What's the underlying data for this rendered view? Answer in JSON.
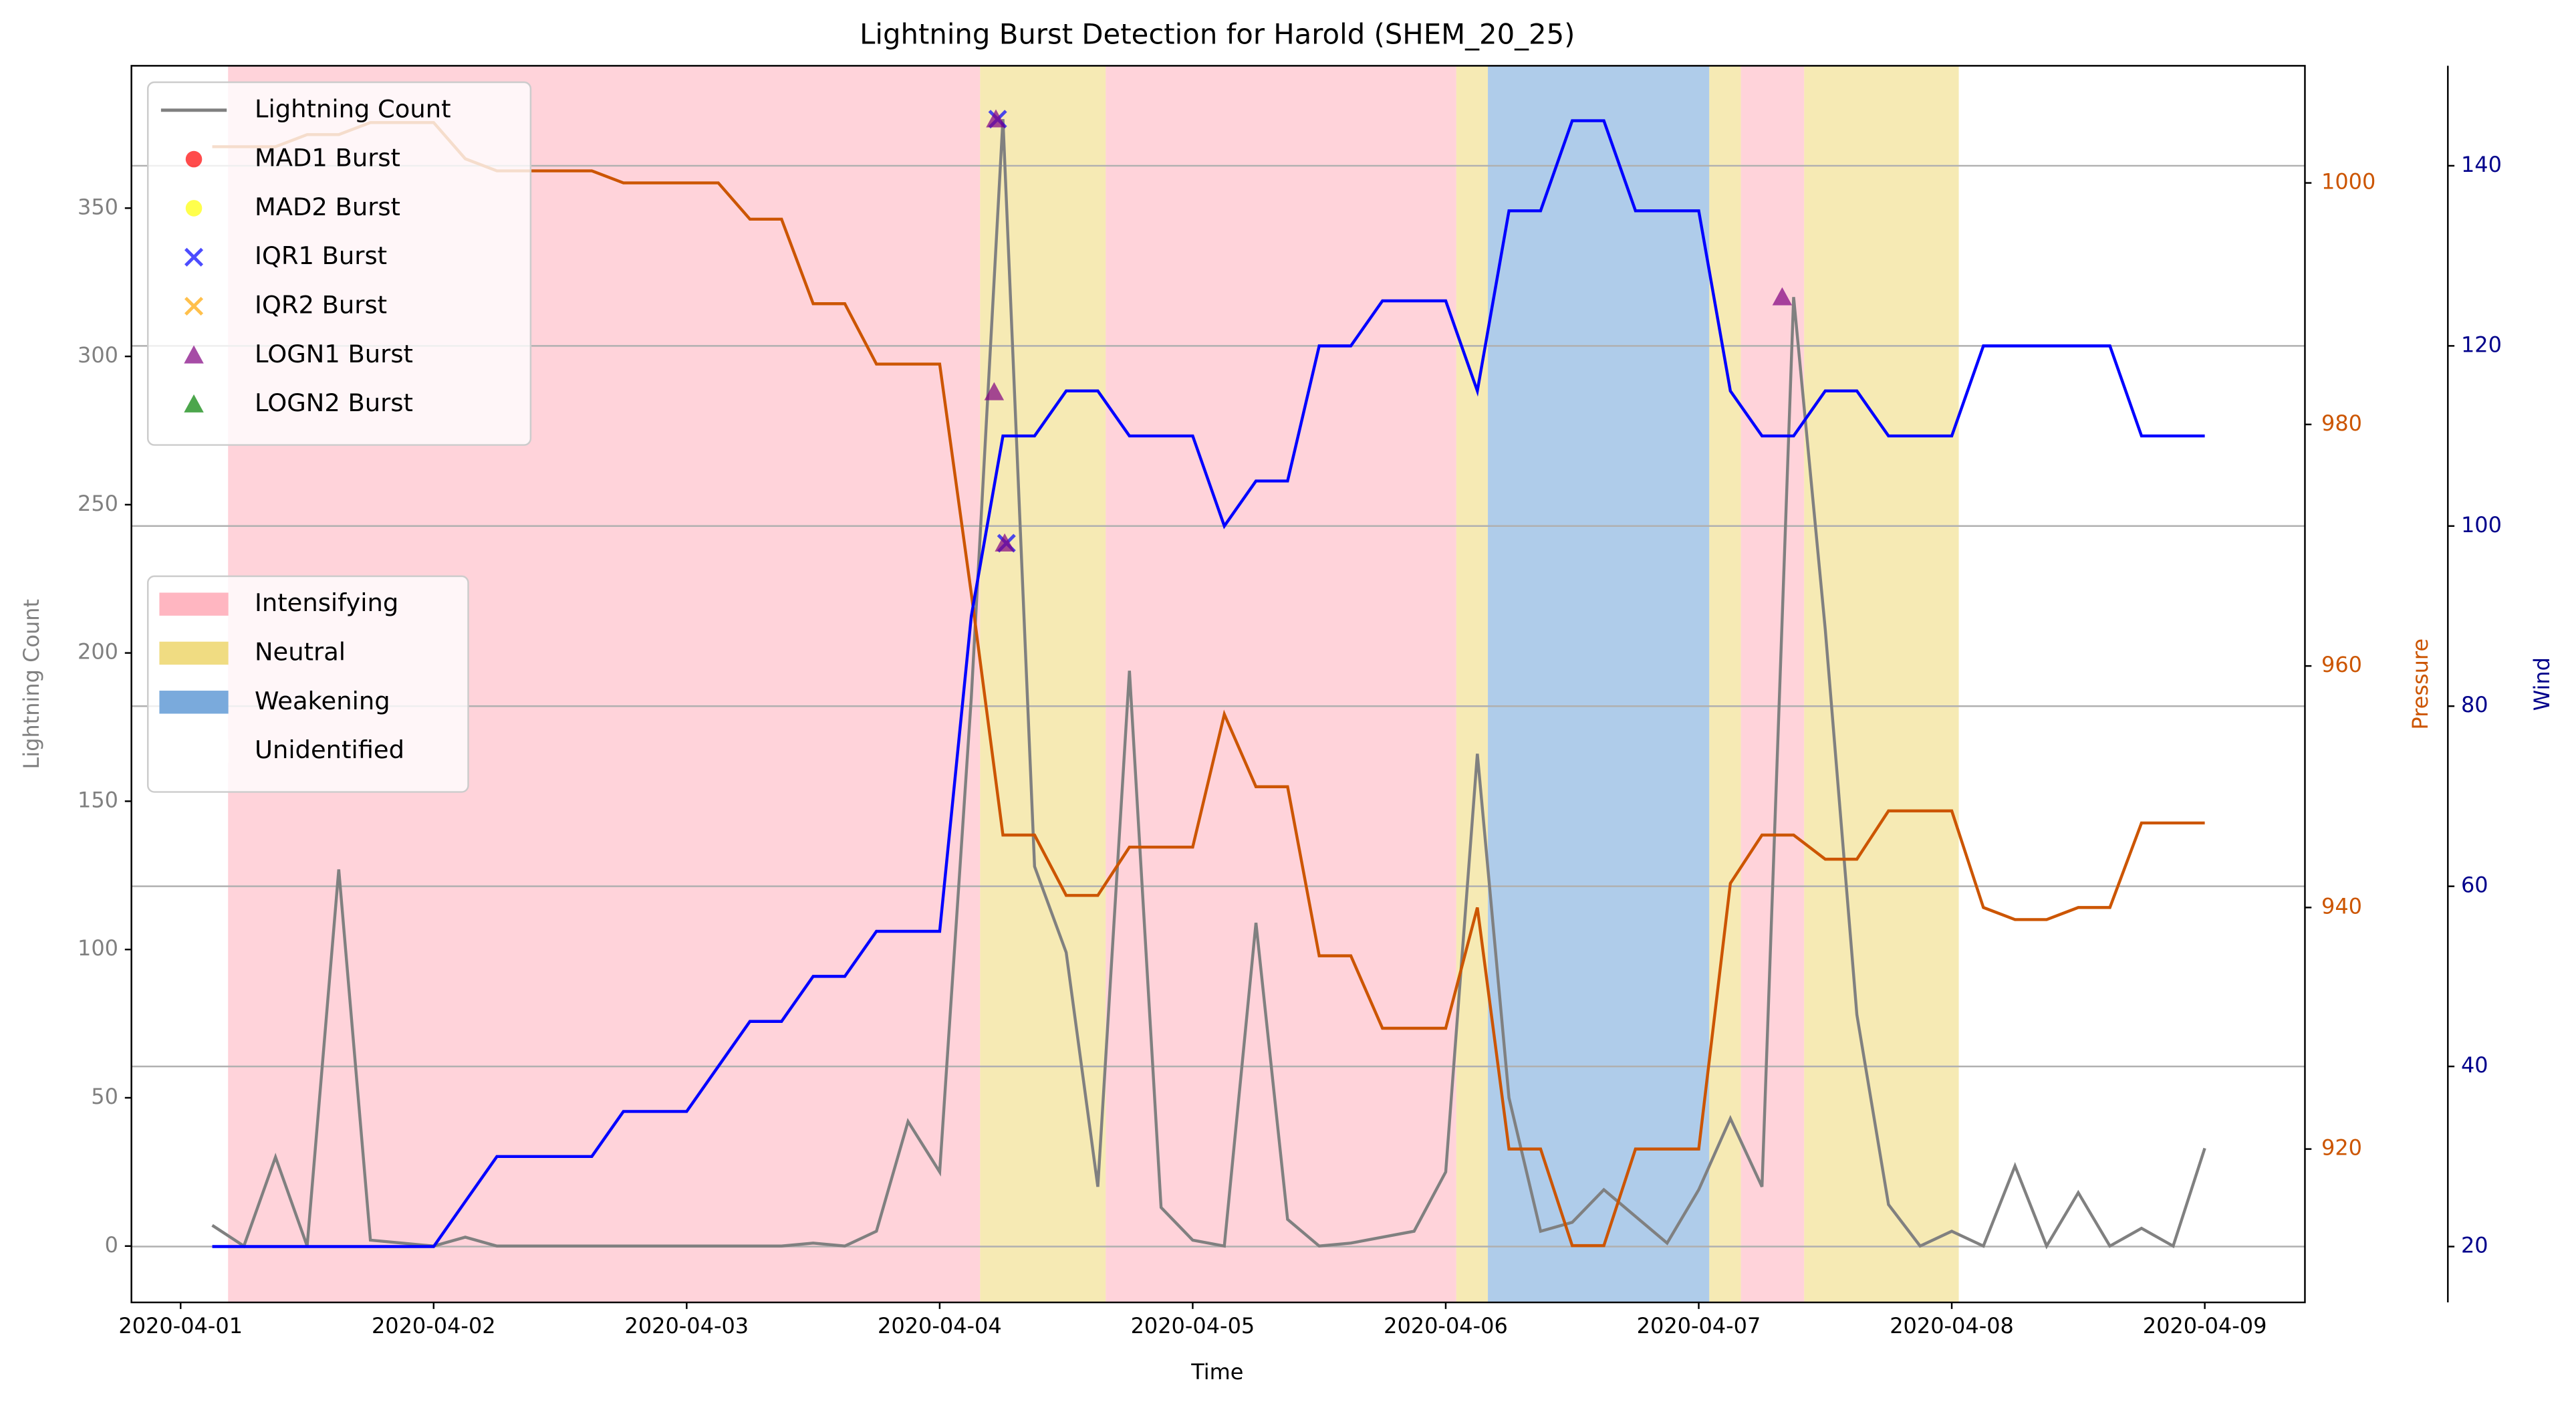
{
  "chart_data": {
    "type": "line",
    "title": "Lightning Burst Detection for Harold (SHEM_20_25)",
    "xlabel": "Time",
    "ylabel": "Lightning Count",
    "y2label": "Pressure",
    "y3label": "Wind",
    "x": [
      "2020-04-01T03:00",
      "2020-04-01T06:00",
      "2020-04-01T09:00",
      "2020-04-01T12:00",
      "2020-04-01T15:00",
      "2020-04-01T18:00",
      "2020-04-01T21:00",
      "2020-04-02T00:00",
      "2020-04-02T03:00",
      "2020-04-02T06:00",
      "2020-04-02T09:00",
      "2020-04-02T12:00",
      "2020-04-02T15:00",
      "2020-04-02T18:00",
      "2020-04-02T21:00",
      "2020-04-03T00:00",
      "2020-04-03T03:00",
      "2020-04-03T06:00",
      "2020-04-03T09:00",
      "2020-04-03T12:00",
      "2020-04-03T15:00",
      "2020-04-03T18:00",
      "2020-04-03T21:00",
      "2020-04-04T00:00",
      "2020-04-04T03:00",
      "2020-04-04T06:00",
      "2020-04-04T09:00",
      "2020-04-04T12:00",
      "2020-04-04T15:00",
      "2020-04-04T18:00",
      "2020-04-04T21:00",
      "2020-04-05T00:00",
      "2020-04-05T03:00",
      "2020-04-05T06:00",
      "2020-04-05T09:00",
      "2020-04-05T12:00",
      "2020-04-05T15:00",
      "2020-04-05T18:00",
      "2020-04-05T21:00",
      "2020-04-06T00:00",
      "2020-04-06T03:00",
      "2020-04-06T06:00",
      "2020-04-06T09:00",
      "2020-04-06T12:00",
      "2020-04-06T15:00",
      "2020-04-06T18:00",
      "2020-04-06T21:00",
      "2020-04-07T00:00",
      "2020-04-07T03:00",
      "2020-04-07T06:00",
      "2020-04-07T09:00",
      "2020-04-07T12:00",
      "2020-04-07T15:00",
      "2020-04-07T18:00",
      "2020-04-07T21:00",
      "2020-04-08T00:00",
      "2020-04-08T03:00",
      "2020-04-08T06:00",
      "2020-04-08T09:00",
      "2020-04-08T12:00",
      "2020-04-08T15:00",
      "2020-04-08T18:00",
      "2020-04-08T21:00",
      "2020-04-09T00:00"
    ],
    "xlim": [
      "2020-03-31T19:20",
      "2020-04-09T09:30"
    ],
    "xticks": [
      "2020-04-01",
      "2020-04-02",
      "2020-04-03",
      "2020-04-04",
      "2020-04-05",
      "2020-04-06",
      "2020-04-07",
      "2020-04-08",
      "2020-04-09"
    ],
    "ylim": [
      -19,
      398
    ],
    "yticks": [
      0,
      50,
      100,
      150,
      200,
      250,
      300,
      350
    ],
    "y2lim": [
      907.3,
      1009.7
    ],
    "y2ticks": [
      920,
      940,
      960,
      980,
      1000
    ],
    "y3lim": [
      13.8,
      151.1
    ],
    "y3ticks": [
      20,
      40,
      60,
      80,
      100,
      120,
      140
    ],
    "grid": "y3",
    "series": [
      {
        "name": "Lightning Count",
        "color": "#808080",
        "axis": "y",
        "values": [
          7,
          0,
          30,
          0,
          127,
          2,
          1,
          0,
          3,
          0,
          0,
          0,
          0,
          0,
          0,
          0,
          0,
          0,
          0,
          1,
          0,
          5,
          42,
          25,
          185,
          380,
          128,
          99,
          20,
          194,
          13,
          2,
          0,
          109,
          9,
          0,
          1,
          3,
          5,
          25,
          166,
          50,
          5,
          8,
          19,
          10,
          1,
          19,
          43,
          20,
          320,
          208,
          78,
          14,
          0,
          5,
          0,
          27,
          0,
          18,
          0,
          6,
          0,
          33
        ]
      }
    ],
    "pressure": {
      "color": "#cc5500",
      "axis": "y2",
      "values": [
        1003,
        1003,
        1003,
        1004,
        1004,
        1005,
        1005,
        1005,
        1002,
        1001,
        1001,
        1001,
        1001,
        1000,
        1000,
        1000,
        1000,
        997,
        997,
        990,
        990,
        985,
        985,
        985,
        966,
        946,
        946,
        941,
        941,
        945,
        945,
        945,
        956,
        950,
        950,
        936,
        936,
        930,
        930,
        930,
        940,
        920,
        920,
        912,
        912,
        920,
        920,
        920,
        942,
        946,
        946,
        944,
        944,
        948,
        948,
        948,
        940,
        939,
        939,
        940,
        940,
        947,
        947,
        947
      ]
    },
    "wind": {
      "color": "#0000ff",
      "axis": "y3",
      "values": [
        20,
        20,
        20,
        20,
        20,
        20,
        20,
        20,
        25,
        30,
        30,
        30,
        30,
        35,
        35,
        35,
        40,
        45,
        45,
        50,
        50,
        55,
        55,
        55,
        90,
        110,
        110,
        115,
        115,
        110,
        110,
        110,
        100,
        105,
        105,
        120,
        120,
        125,
        125,
        125,
        115,
        135,
        135,
        145,
        145,
        135,
        135,
        135,
        115,
        110,
        110,
        115,
        115,
        110,
        110,
        110,
        120,
        120,
        120,
        120,
        120,
        110,
        110,
        110
      ]
    },
    "bursts": [
      {
        "name": "MAD1 Burst",
        "color": "#ff0000",
        "marker": "circle",
        "x": [],
        "values": []
      },
      {
        "name": "MAD2 Burst",
        "color": "#ffff00",
        "marker": "circle",
        "x": [],
        "values": []
      },
      {
        "name": "IQR1 Burst",
        "color": "#0000ff",
        "marker": "x",
        "x": [
          "2020-04-04T05:30",
          "2020-04-04T06:20"
        ],
        "values": [
          380,
          237
        ]
      },
      {
        "name": "IQR2 Burst",
        "color": "#ffa500",
        "marker": "x",
        "x": [],
        "values": []
      },
      {
        "name": "LOGN1 Burst",
        "color": "#800080",
        "marker": "triangle",
        "x": [
          "2020-04-04T05:20",
          "2020-04-04T05:10",
          "2020-04-04T06:10",
          "2020-04-07T07:55"
        ],
        "values": [
          380,
          288,
          237,
          320
        ]
      },
      {
        "name": "LOGN2 Burst",
        "color": "#008000",
        "marker": "triangle",
        "x": [],
        "values": []
      }
    ],
    "legend": "upper left",
    "phases": [
      {
        "name": "Intensifying",
        "color": "#ffb6c1"
      },
      {
        "name": "Neutral",
        "color": "#f0dc82"
      },
      {
        "name": "Weakening",
        "color": "#7aaadc"
      },
      {
        "name": "Unidentified",
        "color": "#ffffff"
      }
    ],
    "phase_legend": "center left",
    "periods": [
      {
        "phase": "Intensifying",
        "start": "2020-04-01T04:30",
        "end": "2020-04-04T03:50"
      },
      {
        "phase": "Neutral",
        "start": "2020-04-04T03:50",
        "end": "2020-04-04T15:45"
      },
      {
        "phase": "Intensifying",
        "start": "2020-04-04T15:45",
        "end": "2020-04-06T01:00"
      },
      {
        "phase": "Neutral",
        "start": "2020-04-06T01:00",
        "end": "2020-04-06T04:00"
      },
      {
        "phase": "Weakening",
        "start": "2020-04-06T04:00",
        "end": "2020-04-07T01:00"
      },
      {
        "phase": "Neutral",
        "start": "2020-04-07T01:00",
        "end": "2020-04-07T04:00"
      },
      {
        "phase": "Intensifying",
        "start": "2020-04-07T04:00",
        "end": "2020-04-07T10:00"
      },
      {
        "phase": "Neutral",
        "start": "2020-04-07T10:00",
        "end": "2020-04-08T00:40"
      }
    ]
  }
}
